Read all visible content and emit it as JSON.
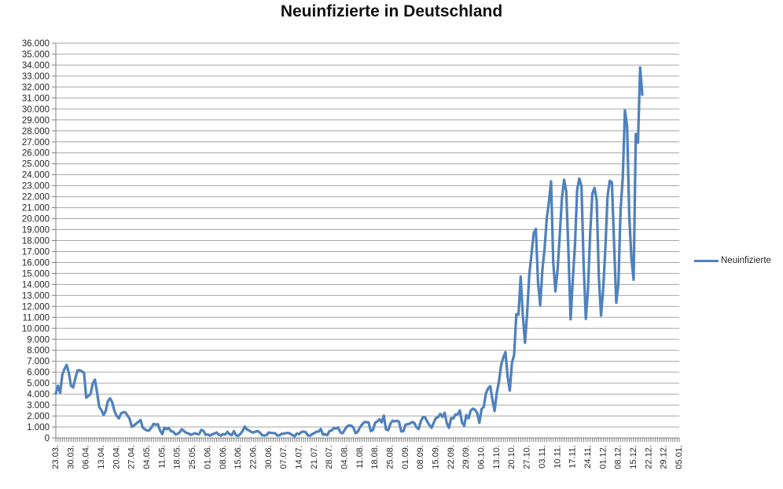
{
  "page": {
    "background": "#FFFFFF"
  },
  "header": {
    "title": "Neuinfizierte in Deutschland"
  },
  "legend": {
    "label": "Neuinfizierte",
    "swatch_color": "#4F81BD"
  },
  "colors": {
    "series_line": "#4F81BD",
    "gridline": "#A6A6A6",
    "axis_line": "#808080",
    "tick_mark": "#808080",
    "axis_text": "#262626",
    "title_text": "#111111"
  },
  "chart_data": {
    "type": "line",
    "title": "Neuinfizierte in Deutschland",
    "xlabel": "",
    "ylabel": "",
    "grid": "horizontal",
    "legend_position": "right",
    "legend_entries": [
      "Neuinfizierte"
    ],
    "ylim": [
      0,
      36000
    ],
    "y_step": 1000,
    "y_tick_labels": [
      "0",
      "1.000",
      "2.000",
      "3.000",
      "4.000",
      "5.000",
      "6.000",
      "7.000",
      "8.000",
      "9.000",
      "10.000",
      "11.000",
      "12.000",
      "13.000",
      "14.000",
      "15.000",
      "16.000",
      "17.000",
      "18.000",
      "19.000",
      "20.000",
      "21.000",
      "22.000",
      "23.000",
      "24.000",
      "25.000",
      "26.000",
      "27.000",
      "28.000",
      "29.000",
      "30.000",
      "31.000",
      "32.000",
      "33.000",
      "34.000",
      "35.000",
      "36.000"
    ],
    "x_tick_labels": [
      "23.03.",
      "30.03.",
      "06.04.",
      "13.04.",
      "20.04.",
      "27.04.",
      "04.05.",
      "11.05.",
      "18.05.",
      "25.05.",
      "01.06.",
      "08.06.",
      "15.06.",
      "22.06.",
      "30.06.",
      "07.07.",
      "14.07.",
      "21.07.",
      "28.07.",
      "04.08.",
      "11.08.",
      "18.08.",
      "25.08.",
      "01.09.",
      "08.09.",
      "15.09.",
      "22.09.",
      "29.09.",
      "06.10.",
      "13.10.",
      "20.10.",
      "27.10.",
      "03.11.",
      "10.11.",
      "17.11.",
      "24.11.",
      "01.12.",
      "08.12.",
      "15.12.",
      "22.12.",
      "29.12.",
      "05.01."
    ],
    "x_label_every_n_days": 7,
    "x_axis_total_days": 288,
    "minor_ticks": "daily",
    "series": [
      {
        "name": "Neuinfizierte",
        "color": "#4F81BD",
        "start_label": "23.03.",
        "end_label": "19.12.",
        "frequency": "daily",
        "values": [
          4062,
          4764,
          4118,
          5780,
          6294,
          6661,
          5936,
          4751,
          4615,
          5453,
          6156,
          6174,
          6082,
          5936,
          3677,
          3834,
          4003,
          4974,
          5323,
          4133,
          2821,
          2537,
          2082,
          2486,
          3380,
          3609,
          3242,
          2458,
          2018,
          1785,
          2237,
          2352,
          2337,
          2055,
          1737,
          1018,
          1144,
          1304,
          1478,
          1639,
          945,
          793,
          679,
          685,
          947,
          1284,
          1209,
          1251,
          667,
          357,
          933,
          798,
          913,
          620,
          583,
          342,
          358,
          513,
          797,
          639,
          460,
          431,
          289,
          358,
          432,
          362,
          353,
          741,
          638,
          286,
          333,
          213,
          342,
          394,
          507,
          301,
          214,
          350,
          318,
          555,
          348,
          258,
          620,
          247,
          192,
          378,
          645,
          1045,
          770,
          687,
          537,
          503,
          587,
          630,
          477,
          256,
          219,
          262,
          498,
          466,
          446,
          422,
          219,
          239,
          390,
          397,
          442,
          462,
          378,
          248,
          159,
          412,
          351,
          534,
          583,
          529,
          249,
          202,
          351,
          445,
          569,
          583,
          815,
          305,
          340,
          264,
          633,
          684,
          902,
          870,
          955,
          509,
          432,
          741,
          1045,
          1147,
          1122,
          955,
          436,
          561,
          966,
          1226,
          1445,
          1449,
          1415,
          625,
          733,
          1390,
          1510,
          1707,
          1427,
          2034,
          782,
          711,
          1278,
          1576,
          1507,
          1571,
          1479,
          610,
          611,
          1218,
          1256,
          1311,
          1453,
          1378,
          988,
          814,
          1499,
          1892,
          1882,
          1484,
          1176,
          927,
          1407,
          1821,
          1901,
          2194,
          1916,
          2297,
          1345,
          922,
          1821,
          1769,
          2143,
          2153,
          2507,
          1411,
          1111,
          2089,
          1798,
          2503,
          2673,
          2563,
          2279,
          1382,
          2639,
          2828,
          4058,
          4516,
          4721,
          3483,
          2467,
          4122,
          5132,
          6638,
          7334,
          7830,
          5587,
          4325,
          6868,
          7595,
          11287,
          11242,
          14714,
          11176,
          8685,
          11409,
          14964,
          16774,
          18681,
          19059,
          14177,
          12097,
          15352,
          17214,
          19990,
          21506,
          23399,
          16017,
          13363,
          15332,
          18487,
          21866,
          23542,
          22461,
          16947,
          10824,
          14419,
          17561,
          22609,
          23648,
          22964,
          15741,
          10864,
          13554,
          18633,
          22268,
          22806,
          21695,
          14611,
          11169,
          13604,
          17270,
          22046,
          23449,
          23318,
          17767,
          12332,
          14054,
          20815,
          23679,
          29875,
          28438,
          20200,
          16362,
          14432,
          27728,
          26923,
          33777,
          31300
        ]
      }
    ]
  }
}
